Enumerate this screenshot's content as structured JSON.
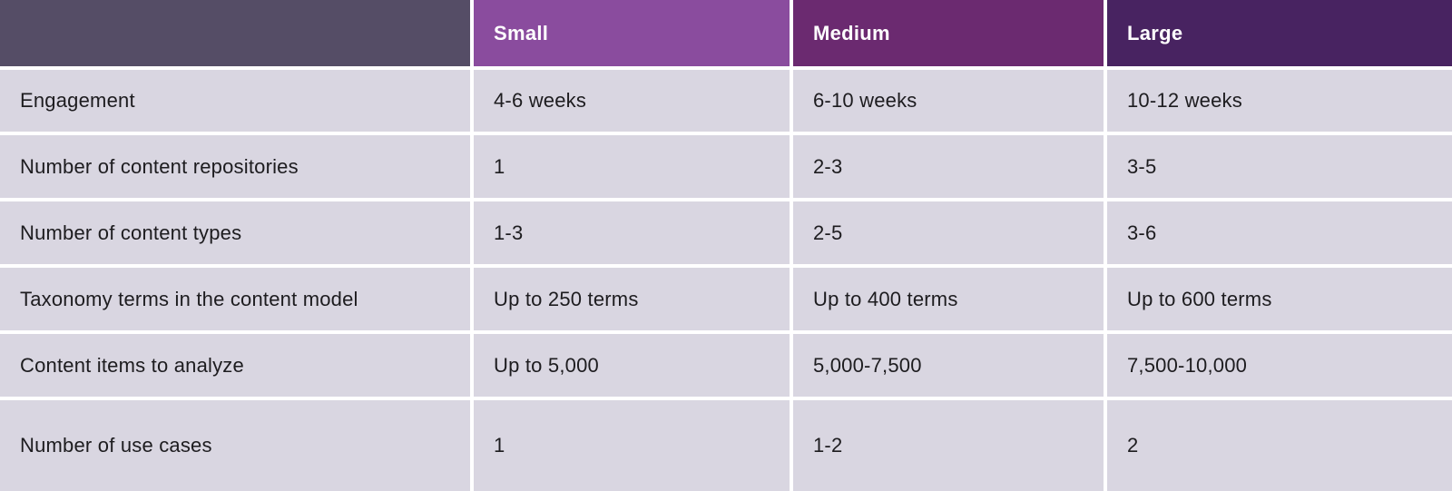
{
  "chart_data": {
    "type": "table",
    "columns": [
      "",
      "Small",
      "Medium",
      "Large"
    ],
    "rows": [
      {
        "label": "Engagement",
        "values": [
          "4-6 weeks",
          "6-10 weeks",
          "10-12 weeks"
        ]
      },
      {
        "label": "Number of content repositories",
        "values": [
          "1",
          "2-3",
          "3-5"
        ]
      },
      {
        "label": "Number of content types",
        "values": [
          "1-3",
          "2-5",
          "3-6"
        ]
      },
      {
        "label": "Taxonomy terms in the content model",
        "values": [
          "Up to 250 terms",
          "Up to 400 terms",
          "Up to 600 terms"
        ]
      },
      {
        "label": "Content items to analyze",
        "values": [
          "Up to 5,000",
          "5,000-7,500",
          "7,500-10,000"
        ]
      },
      {
        "label": "Number of use cases",
        "values": [
          "1",
          "1-2",
          "2"
        ]
      }
    ]
  },
  "colors": {
    "corner_header_bg": "#554d66",
    "small_header_bg": "#8a4c9e",
    "medium_header_bg": "#6b2a70",
    "large_header_bg": "#482361",
    "body_cell_bg": "#d9d6e1",
    "gutter": "#ffffff",
    "header_text": "#ffffff",
    "body_text": "#1d1c1f"
  }
}
